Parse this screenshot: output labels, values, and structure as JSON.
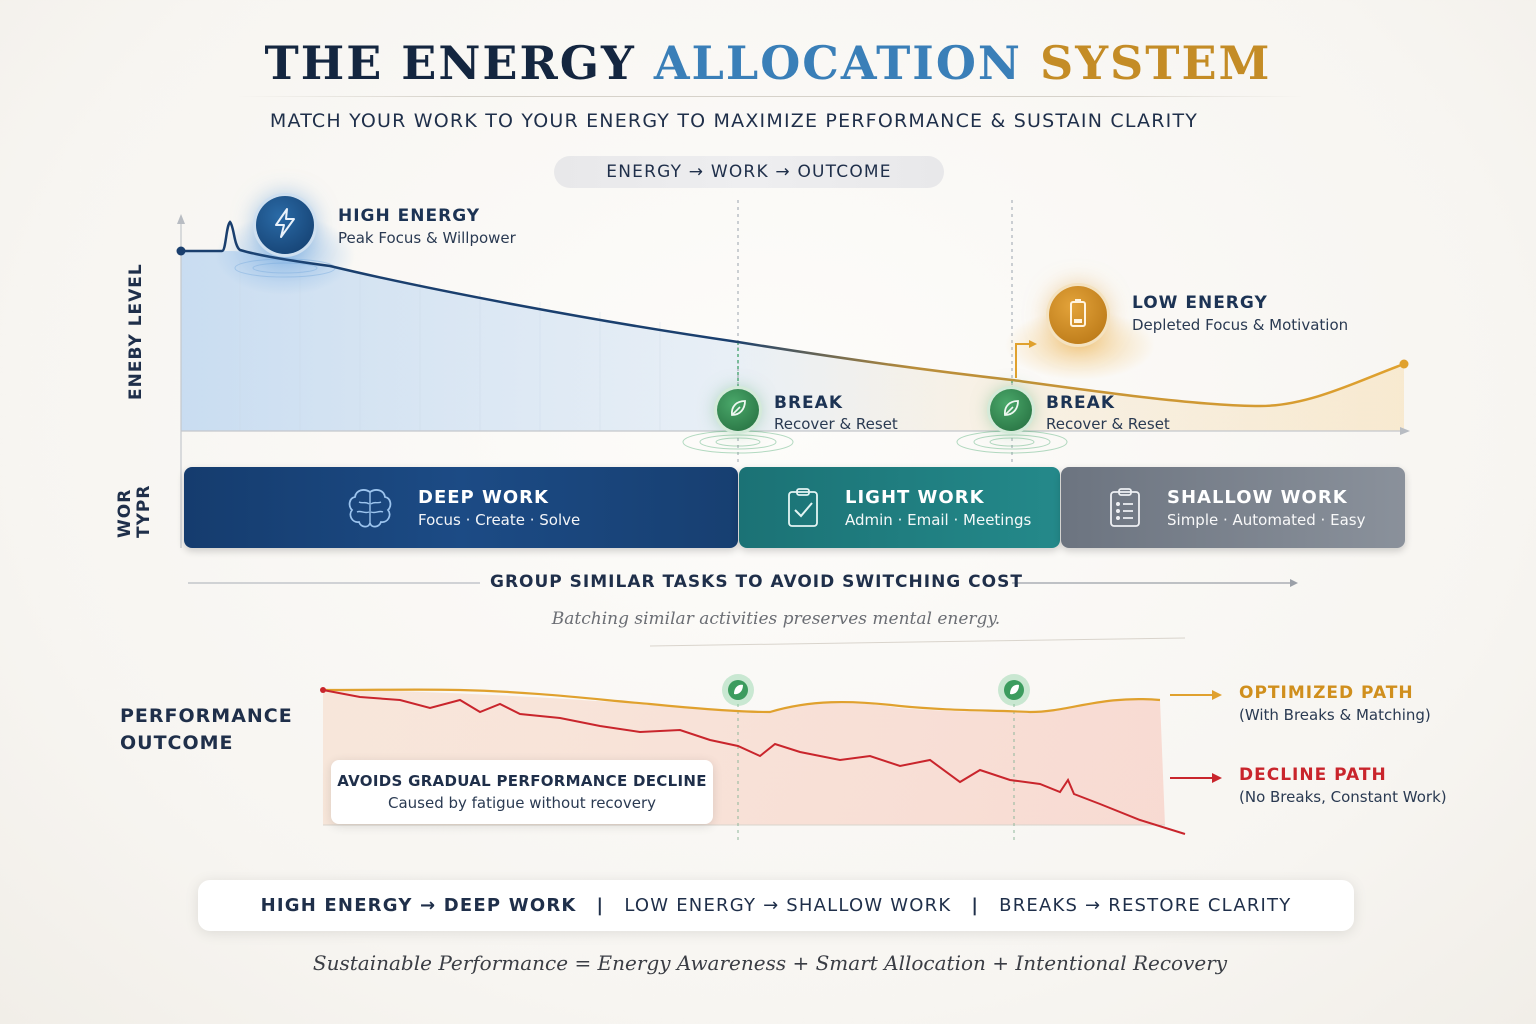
{
  "header": {
    "title_part1": "THE ENERGY",
    "title_part2": "ALLOCATION",
    "title_part3": "SYSTEM",
    "subtitle": "MATCH YOUR WORK TO YOUR ENERGY TO MAXIMIZE PERFORMANCE & SUSTAIN CLARITY",
    "flow": "ENERGY → WORK → OUTCOME"
  },
  "colors": {
    "navy": "#153c6e",
    "blue_accent": "#3a7fb8",
    "gold_accent": "#c48c26",
    "teal": "#1b7275",
    "gray": "#7a818b",
    "decline_red": "#c9252c",
    "optimized_gold": "#e0a12e"
  },
  "energy_chart": {
    "y_axis_label": "ENEBY LEVEL",
    "high": {
      "icon": "lightning-bolt-icon",
      "title": "HIGH ENERGY",
      "subtitle": "Peak Focus & Willpower"
    },
    "low": {
      "icon": "battery-low-icon",
      "title": "LOW ENERGY",
      "subtitle": "Depleted Focus & Motivation"
    },
    "breaks": [
      {
        "icon": "leaf-icon",
        "title": "BREAK",
        "subtitle": "Recover & Reset"
      },
      {
        "icon": "leaf-icon",
        "title": "BREAK",
        "subtitle": "Recover & Reset"
      }
    ]
  },
  "work_types": {
    "axis_label_line1": "WOR",
    "axis_label_line2": "TYPR",
    "items": [
      {
        "icon": "brain-icon",
        "title": "DEEP WORK",
        "subtitle": "Focus · Create · Solve"
      },
      {
        "icon": "clipboard-check-icon",
        "title": "LIGHT WORK",
        "subtitle": "Admin · Email · Meetings"
      },
      {
        "icon": "checklist-icon",
        "title": "SHALLOW WORK",
        "subtitle": "Simple · Automated · Easy"
      }
    ],
    "group_note": "GROUP SIMILAR TASKS TO AVOID SWITCHING COST",
    "batching_note": "Batching similar activities preserves mental energy."
  },
  "performance": {
    "label_line1": "PERFORMANCE",
    "label_line2": "OUTCOME",
    "callout_title": "AVOIDS GRADUAL PERFORMANCE DECLINE",
    "callout_sub": "Caused by fatigue without recovery",
    "optimized_title": "OPTIMIZED PATH",
    "optimized_sub": "(With Breaks & Matching)",
    "decline_title": "DECLINE PATH",
    "decline_sub": "(No Breaks, Constant Work)"
  },
  "summary": {
    "item1": "HIGH ENERGY → DEEP WORK",
    "item2": "LOW ENERGY → SHALLOW WORK",
    "item3": "BREAKS → RESTORE CLARITY",
    "separator": "|",
    "formula": "Sustainable Performance = Energy Awareness + Smart Allocation + Intentional Recovery"
  }
}
